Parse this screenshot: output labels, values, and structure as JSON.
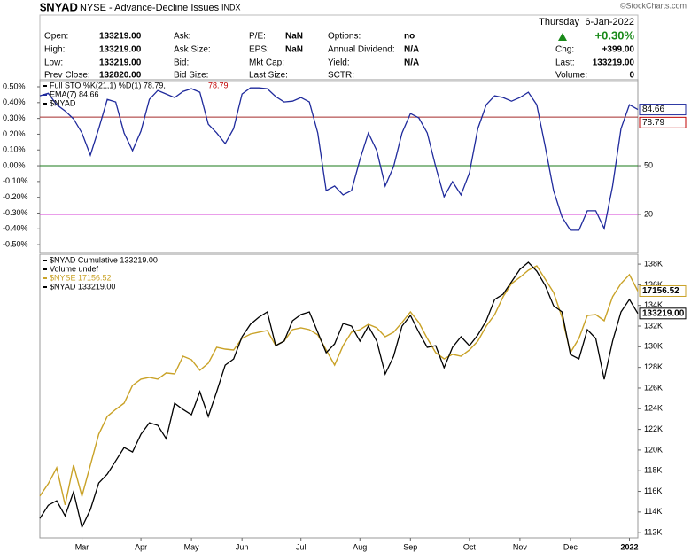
{
  "header": {
    "symbol": "$NYAD",
    "name": "NYSE - Advance-Decline Issues",
    "exchange": "INDX",
    "watermark": "©StockCharts.com",
    "day": "Thursday",
    "date": "6-Jan-2022",
    "change_pct": "+0.30%",
    "quote": [
      [
        {
          "label": "Open:",
          "value": "133219.00"
        },
        {
          "label": "Ask:"
        },
        {
          "label": "P/E:",
          "value": "NaN"
        },
        {
          "label": "Options:",
          "value": "no"
        }
      ],
      [
        {
          "label": "High:",
          "value": "133219.00"
        },
        {
          "label": "Ask Size:"
        },
        {
          "label": "EPS:",
          "value": "NaN"
        },
        {
          "label": "Annual Dividend:",
          "value": "N/A"
        }
      ],
      [
        {
          "label": "Low:",
          "value": "133219.00"
        },
        {
          "label": "Bid:"
        },
        {
          "label": "Mkt Cap:"
        },
        {
          "label": "Yield:",
          "value": "N/A"
        }
      ],
      [
        {
          "label": "Prev Close:",
          "value": "132820.00"
        },
        {
          "label": "Bid Size:"
        },
        {
          "label": "Last Size:"
        },
        {
          "label": "SCTR:"
        }
      ]
    ],
    "summary": [
      {
        "label": "Chg:",
        "value": "+399.00"
      },
      {
        "label": "Last:",
        "value": "133219.00"
      },
      {
        "label": "Volume:",
        "value": "0"
      }
    ]
  },
  "chart_data": [
    {
      "type": "line",
      "legend": [
        "Full STO %K(21,1) %D(1) 78.79,",
        "EMA(7) 84.66",
        "$NYAD"
      ],
      "sto_value": 78.79,
      "ylim": [
        -0.55,
        0.545
      ],
      "yticks": [
        {
          "value": 0.5,
          "label": "0.50%"
        },
        {
          "value": 0.4,
          "label": "0.40%"
        },
        {
          "value": 0.3,
          "label": "0.30%"
        },
        {
          "value": 0.2,
          "label": "0.20%"
        },
        {
          "value": 0.1,
          "label": "0.10%"
        },
        {
          "value": 0,
          "label": "0.00%"
        },
        {
          "value": -0.1,
          "label": "-0.10%"
        },
        {
          "value": -0.2,
          "label": "-0.20%"
        },
        {
          "value": -0.3,
          "label": "-0.30%"
        },
        {
          "value": -0.4,
          "label": "-0.40%"
        },
        {
          "value": -0.5,
          "label": "-0.50%"
        }
      ],
      "y2lim": [
        -3.5,
        103
      ],
      "y2ticks": [
        50,
        20
      ],
      "reference_lines": [
        {
          "value": 80,
          "color": "#a52a2a"
        },
        {
          "value": 50,
          "color": "#1a7a1a"
        },
        {
          "value": 20,
          "color": "#d63cd6"
        }
      ],
      "series": [
        {
          "color": "#1f2a9c",
          "axis": "y2",
          "values": [
            93.1,
            94.7,
            87.6,
            83.8,
            78.9,
            70.2,
            56.5,
            72.9,
            90.9,
            89.3,
            70.2,
            59.3,
            71.3,
            90.9,
            96.4,
            94.2,
            92.0,
            95.8,
            97.5,
            95.3,
            75.6,
            70.2,
            63.6,
            72.9,
            94.2,
            98.0,
            98.0,
            97.5,
            92.6,
            89.3,
            89.8,
            92.0,
            89.3,
            70.2,
            34.7,
            37.5,
            32.0,
            34.7,
            53.8,
            70.2,
            59.3,
            37.5,
            49.5,
            70.2,
            82.2,
            79.5,
            70.2,
            49.5,
            30.9,
            40.2,
            32.0,
            45.6,
            72.9,
            87.6,
            93.1,
            92.0,
            89.8,
            92.0,
            95.3,
            87.6,
            62.0,
            34.7,
            18.4,
            10.2,
            10.2,
            22.2,
            22.2,
            11.3,
            37.5,
            72.9,
            87.6,
            84.66
          ]
        }
      ]
    },
    {
      "type": "line",
      "legend": [
        "$NYAD Cumulative 133219.00",
        "Volume undef",
        "$NYSE 17156.52",
        "$NYAD 133219.00"
      ],
      "last_label": "133219.00",
      "categories": [
        null,
        null,
        null,
        null,
        null,
        "Mar",
        null,
        null,
        null,
        null,
        null,
        null,
        "Apr",
        null,
        null,
        null,
        null,
        null,
        "May",
        null,
        null,
        null,
        null,
        null,
        "Jun",
        null,
        null,
        null,
        null,
        null,
        null,
        "Jul",
        null,
        null,
        null,
        null,
        null,
        null,
        "Aug",
        null,
        null,
        null,
        null,
        null,
        "Sep",
        null,
        null,
        null,
        null,
        null,
        null,
        "Oct",
        null,
        null,
        null,
        null,
        null,
        "Nov",
        null,
        null,
        null,
        null,
        null,
        "Dec",
        null,
        null,
        null,
        null,
        null,
        null,
        "2022",
        null
      ],
      "ylim": [
        111500,
        138950
      ],
      "yticks": [
        {
          "value": 112000,
          "label": "112K"
        },
        {
          "value": 114000,
          "label": "114K"
        },
        {
          "value": 116000,
          "label": "116K"
        },
        {
          "value": 118000,
          "label": "118K"
        },
        {
          "value": 120000,
          "label": "120K"
        },
        {
          "value": 122000,
          "label": "122K"
        },
        {
          "value": 124000,
          "label": "124K"
        },
        {
          "value": 126000,
          "label": "126K"
        },
        {
          "value": 128000,
          "label": "128K"
        },
        {
          "value": 130000,
          "label": "130K"
        },
        {
          "value": 132000,
          "label": "132K"
        },
        {
          "value": 134000,
          "label": "134K"
        },
        {
          "value": 136000,
          "label": "136K"
        },
        {
          "value": 138000,
          "label": "138K"
        }
      ],
      "y2lim": [
        14850,
        17500
      ],
      "series": [
        {
          "color": "#c9a227",
          "axis": "y2",
          "values": [
            15240,
            15356,
            15505,
            15157,
            15530,
            15240,
            15530,
            15820,
            15985,
            16051,
            16109,
            16275,
            16333,
            16349,
            16333,
            16391,
            16382,
            16548,
            16515,
            16416,
            16482,
            16631,
            16614,
            16606,
            16714,
            16755,
            16772,
            16788,
            16647,
            16689,
            16796,
            16813,
            16796,
            16747,
            16606,
            16465,
            16647,
            16772,
            16796,
            16846,
            16813,
            16730,
            16772,
            16863,
            16962,
            16863,
            16714,
            16581,
            16523,
            16565,
            16548,
            16606,
            16689,
            16829,
            16937,
            17103,
            17227,
            17285,
            17351,
            17392,
            17268,
            17144,
            16912,
            16581,
            16714,
            16929,
            16937,
            16879,
            17103,
            17227,
            17310,
            17156.52
          ]
        },
        {
          "color": "#000000",
          "values": [
            113370,
            114660,
            115090,
            113630,
            115950,
            112520,
            114230,
            116810,
            117670,
            118950,
            120240,
            119810,
            121530,
            122640,
            122390,
            121100,
            124530,
            123930,
            123420,
            125650,
            123240,
            125650,
            128220,
            128820,
            130970,
            132170,
            132860,
            133370,
            130110,
            130540,
            132520,
            133120,
            133370,
            131400,
            129420,
            130280,
            132260,
            132000,
            130540,
            132000,
            130540,
            127360,
            129080,
            132000,
            133030,
            131400,
            129940,
            130110,
            127970,
            129940,
            130970,
            130110,
            131140,
            132520,
            134580,
            135090,
            136290,
            137490,
            138180,
            137320,
            135950,
            133970,
            133370,
            129250,
            128820,
            131660,
            130800,
            126850,
            130540,
            133370,
            134580,
            133219
          ]
        }
      ]
    }
  ]
}
